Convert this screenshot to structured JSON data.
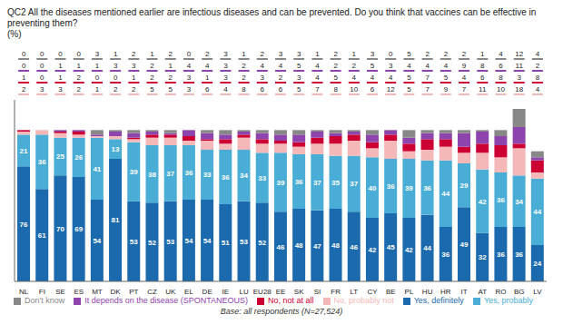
{
  "chart_data": {
    "type": "bar",
    "title": "QC2 All the diseases mentioned earlier are infectious diseases and can be prevented. Do you think that vaccines can be effective in preventing them?",
    "subtitle": "(%)",
    "annotations": [
      "Base: all respondents (N=27,524)"
    ],
    "categories": [
      "NL",
      "FI",
      "SE",
      "ES",
      "MT",
      "DK",
      "PT",
      "CZ",
      "UK",
      "EL",
      "DE",
      "IE",
      "LU",
      "EU28",
      "EE",
      "SK",
      "SI",
      "FR",
      "LT",
      "CY",
      "BE",
      "PL",
      "HU",
      "HR",
      "IT",
      "AT",
      "RO",
      "BG",
      "LV"
    ],
    "series": [
      {
        "name": "Yes, definitely",
        "color": "#1b6aad",
        "values": [
          76,
          61,
          70,
          69,
          54,
          81,
          53,
          52,
          53,
          54,
          54,
          51,
          53,
          52,
          46,
          48,
          47,
          48,
          46,
          42,
          45,
          42,
          44,
          36,
          49,
          32,
          36,
          36,
          24
        ]
      },
      {
        "name": "Yes, probably",
        "color": "#4aadd6",
        "values": [
          21,
          36,
          25,
          26,
          41,
          13,
          39,
          38,
          37,
          36,
          33,
          36,
          34,
          33,
          39,
          36,
          37,
          35,
          37,
          40,
          36,
          39,
          36,
          44,
          29,
          42,
          36,
          34,
          44
        ]
      },
      {
        "name": "No, probably not",
        "color": "#f5b8b8",
        "values": [
          2,
          3,
          3,
          2,
          1,
          2,
          2,
          5,
          5,
          3,
          6,
          4,
          8,
          6,
          6,
          5,
          7,
          8,
          10,
          6,
          12,
          5,
          7,
          9,
          7,
          11,
          10,
          18,
          4
        ]
      },
      {
        "name": "No, not at all",
        "color": "#cc0033",
        "values": [
          1,
          0,
          1,
          2,
          0,
          0,
          1,
          2,
          2,
          3,
          1,
          3,
          2,
          3,
          2,
          3,
          4,
          5,
          4,
          4,
          4,
          5,
          7,
          5,
          4,
          6,
          8,
          3,
          8
        ]
      },
      {
        "name": "It depends on the disease (SPONTANEOUS)",
        "color": "#8e44ad",
        "values": [
          0,
          0,
          1,
          1,
          1,
          3,
          3,
          2,
          1,
          4,
          4,
          3,
          2,
          4,
          4,
          5,
          4,
          2,
          2,
          5,
          3,
          4,
          4,
          4,
          9,
          8,
          6,
          11,
          2
        ]
      },
      {
        "name": "Don't know",
        "color": "#888888",
        "values": [
          0,
          0,
          0,
          0,
          3,
          1,
          2,
          1,
          2,
          0,
          2,
          3,
          1,
          2,
          3,
          3,
          1,
          2,
          1,
          3,
          0,
          5,
          2,
          2,
          2,
          1,
          4,
          12,
          4
        ]
      }
    ],
    "stacked": true,
    "data_labels": true,
    "ylim": [
      0,
      120
    ],
    "tick_labels": "x",
    "grid": false,
    "legend": "bottom"
  }
}
